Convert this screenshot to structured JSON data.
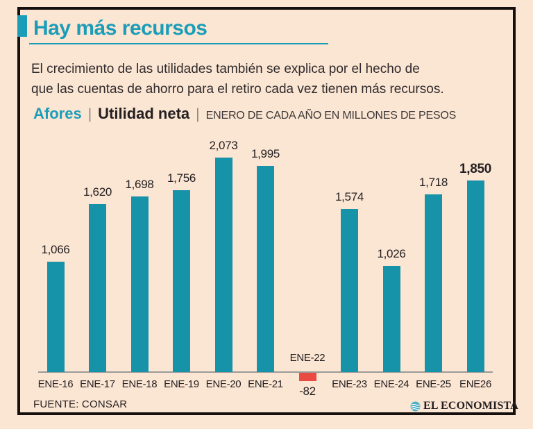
{
  "header": {
    "title": "Hay más recursos",
    "description_line1": "El crecimiento de las utilidades también se explica por el hecho de",
    "description_line2": "que las cuentas de ahorro para el retiro cada vez tienen más recursos.",
    "series_name": "Afores",
    "separator1": "|",
    "metric_name": "Utilidad neta",
    "separator2": "|",
    "units_note": "ENERO DE CADA AÑO EN MILLONES DE PESOS"
  },
  "chart_data": {
    "type": "bar",
    "title": "Afores | Utilidad neta",
    "subtitle": "Enero de cada año en millones de pesos",
    "categories": [
      "ENE-16",
      "ENE-17",
      "ENE-18",
      "ENE-19",
      "ENE-20",
      "ENE-21",
      "ENE-22",
      "ENE-23",
      "ENE-24",
      "ENE-25",
      "ENE26"
    ],
    "values": [
      1066,
      1620,
      1698,
      1756,
      2073,
      1995,
      -82,
      1574,
      1026,
      1718,
      1850
    ],
    "value_labels": [
      "1,066",
      "1,620",
      "1,698",
      "1,756",
      "2,073",
      "1,995",
      "-82",
      "1,574",
      "1,026",
      "1,718",
      "1,850"
    ],
    "bold_label_index": 10,
    "xlabel": "",
    "ylabel": "Millones de pesos",
    "ylim": [
      -100,
      2200
    ],
    "grid": false,
    "legend": false,
    "colors": {
      "positive": "#1793a9",
      "negative": "#e94b43"
    }
  },
  "footer": {
    "source": "FUENTE: CONSAR",
    "brand": "EL ECONOMISTA"
  },
  "colors": {
    "background": "#fbe5d3",
    "accent_teal": "#1b9db8",
    "bar_teal": "#1793a9",
    "bar_red": "#e94b43",
    "text": "#231f20",
    "axis": "#9b9b99"
  }
}
